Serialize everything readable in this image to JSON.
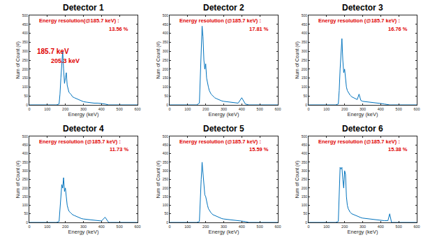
{
  "chart_data": [
    {
      "type": "line",
      "title": "Detector 1",
      "color": "#0072bd",
      "grid": false,
      "x": [
        0,
        150,
        165,
        170,
        175,
        180,
        185,
        190,
        195,
        200,
        205,
        210,
        215,
        220,
        230,
        240,
        250,
        260,
        270,
        280,
        290,
        300,
        320,
        340,
        360,
        380,
        400,
        420,
        440,
        450,
        460,
        600
      ],
      "values": [
        0,
        0,
        5,
        60,
        150,
        230,
        300,
        200,
        120,
        150,
        180,
        110,
        90,
        70,
        60,
        45,
        40,
        35,
        30,
        25,
        20,
        18,
        15,
        12,
        10,
        10,
        8,
        5,
        0,
        0,
        0,
        0
      ],
      "xlim": [
        0,
        600
      ],
      "ylim": [
        0,
        500
      ],
      "xticks": [
        0,
        100,
        200,
        300,
        400,
        500,
        600
      ],
      "yticks": [
        0,
        50,
        100,
        150,
        200,
        250,
        300,
        350,
        400,
        450,
        500
      ],
      "xlabel": "Energy (keV)",
      "ylabel": "Num of Count (#)",
      "annotations": [
        "Energy resolution(@185.7 keV) :",
        "13.56 %",
        "185.7 keV",
        "205.3 keV"
      ]
    },
    {
      "type": "line",
      "title": "Detector 2",
      "color": "#0072bd",
      "grid": false,
      "x": [
        0,
        150,
        165,
        170,
        175,
        180,
        185,
        190,
        195,
        200,
        205,
        210,
        215,
        220,
        230,
        240,
        250,
        260,
        270,
        280,
        290,
        300,
        320,
        340,
        360,
        380,
        400,
        420,
        440,
        450,
        460,
        600
      ],
      "values": [
        0,
        0,
        10,
        150,
        300,
        440,
        380,
        250,
        200,
        230,
        150,
        120,
        100,
        80,
        60,
        50,
        40,
        35,
        30,
        25,
        22,
        20,
        18,
        15,
        12,
        10,
        40,
        5,
        0,
        0,
        0,
        0
      ],
      "xlim": [
        0,
        600
      ],
      "ylim": [
        0,
        500
      ],
      "xticks": [
        0,
        100,
        200,
        300,
        400,
        500,
        600
      ],
      "yticks": [
        0,
        50,
        100,
        150,
        200,
        250,
        300,
        350,
        400,
        450,
        500
      ],
      "xlabel": "Energy (keV)",
      "ylabel": "Num of Count (#)",
      "annotations": [
        "Energy resolution (@185.7 keV) :",
        "17.81 %"
      ]
    },
    {
      "type": "line",
      "title": "Detector 3",
      "color": "#0072bd",
      "grid": false,
      "x": [
        0,
        150,
        165,
        170,
        175,
        180,
        185,
        190,
        195,
        200,
        205,
        210,
        215,
        220,
        230,
        240,
        250,
        260,
        270,
        280,
        290,
        300,
        320,
        340,
        360,
        380,
        400,
        420,
        440,
        450,
        460,
        600
      ],
      "values": [
        0,
        0,
        5,
        80,
        200,
        300,
        370,
        250,
        180,
        200,
        140,
        100,
        80,
        70,
        55,
        45,
        40,
        35,
        30,
        60,
        25,
        20,
        18,
        15,
        12,
        10,
        8,
        5,
        0,
        0,
        0,
        0
      ],
      "xlim": [
        0,
        600
      ],
      "ylim": [
        0,
        500
      ],
      "xticks": [
        0,
        100,
        200,
        300,
        400,
        500,
        600
      ],
      "yticks": [
        0,
        50,
        100,
        150,
        200,
        250,
        300,
        350,
        400,
        450,
        500
      ],
      "xlabel": "Energy (keV)",
      "ylabel": "Num of Count (#)",
      "annotations": [
        "Energy resolution (@185.7 keV) :",
        "16.76 %"
      ]
    },
    {
      "type": "line",
      "title": "Detector 4",
      "color": "#0072bd",
      "grid": false,
      "x": [
        0,
        150,
        165,
        170,
        175,
        180,
        185,
        190,
        195,
        200,
        205,
        210,
        215,
        220,
        230,
        240,
        250,
        260,
        270,
        280,
        290,
        300,
        320,
        340,
        360,
        380,
        400,
        420,
        440,
        450,
        460,
        600
      ],
      "values": [
        0,
        0,
        5,
        80,
        150,
        220,
        200,
        260,
        180,
        200,
        150,
        100,
        80,
        65,
        55,
        45,
        40,
        35,
        30,
        25,
        22,
        20,
        18,
        15,
        12,
        10,
        8,
        30,
        0,
        0,
        0,
        0
      ],
      "xlim": [
        0,
        600
      ],
      "ylim": [
        0,
        500
      ],
      "xticks": [
        0,
        100,
        200,
        300,
        400,
        500,
        600
      ],
      "yticks": [
        0,
        50,
        100,
        150,
        200,
        250,
        300,
        350,
        400,
        450,
        500
      ],
      "xlabel": "Energy (keV)",
      "ylabel": "Num of Count (#)",
      "annotations": [
        "Energy resolution (@185.7 keV) :",
        "11.73 %"
      ]
    },
    {
      "type": "line",
      "title": "Detector 5",
      "color": "#0072bd",
      "grid": false,
      "x": [
        0,
        150,
        165,
        170,
        175,
        180,
        185,
        190,
        195,
        200,
        205,
        210,
        215,
        220,
        230,
        240,
        250,
        260,
        270,
        280,
        290,
        300,
        320,
        340,
        360,
        380,
        400,
        420,
        440,
        450,
        460,
        600
      ],
      "values": [
        0,
        0,
        5,
        100,
        250,
        350,
        280,
        200,
        160,
        150,
        120,
        100,
        80,
        70,
        55,
        45,
        40,
        35,
        30,
        25,
        22,
        20,
        18,
        15,
        12,
        10,
        8,
        5,
        0,
        0,
        0,
        0
      ],
      "xlim": [
        0,
        600
      ],
      "ylim": [
        0,
        500
      ],
      "xticks": [
        0,
        100,
        200,
        300,
        400,
        500,
        600
      ],
      "yticks": [
        0,
        50,
        100,
        150,
        200,
        250,
        300,
        350,
        400,
        450,
        500
      ],
      "xlabel": "Energy (keV)",
      "ylabel": "Num of Count (#)",
      "annotations": [
        "Energy resolution (@185.7 keV) :",
        "15.59 %"
      ]
    },
    {
      "type": "line",
      "title": "Detector 6",
      "color": "#0072bd",
      "grid": false,
      "x": [
        0,
        150,
        165,
        170,
        175,
        180,
        185,
        190,
        195,
        200,
        205,
        210,
        215,
        220,
        230,
        240,
        250,
        260,
        270,
        280,
        290,
        300,
        320,
        340,
        360,
        380,
        400,
        420,
        440,
        450,
        460,
        600
      ],
      "values": [
        0,
        0,
        5,
        150,
        320,
        310,
        320,
        250,
        200,
        300,
        280,
        150,
        100,
        80,
        60,
        50,
        45,
        40,
        35,
        30,
        28,
        25,
        22,
        20,
        18,
        15,
        12,
        10,
        10,
        50,
        0,
        0
      ],
      "xlim": [
        0,
        600
      ],
      "ylim": [
        0,
        500
      ],
      "xticks": [
        0,
        100,
        200,
        300,
        400,
        500,
        600
      ],
      "yticks": [
        0,
        50,
        100,
        150,
        200,
        250,
        300,
        350,
        400,
        450,
        500
      ],
      "xlabel": "Energy (keV)",
      "ylabel": "Num of Count (#)",
      "annotations": [
        "Energy resolution (@185.7 keV) :",
        "15.38 %"
      ]
    }
  ]
}
